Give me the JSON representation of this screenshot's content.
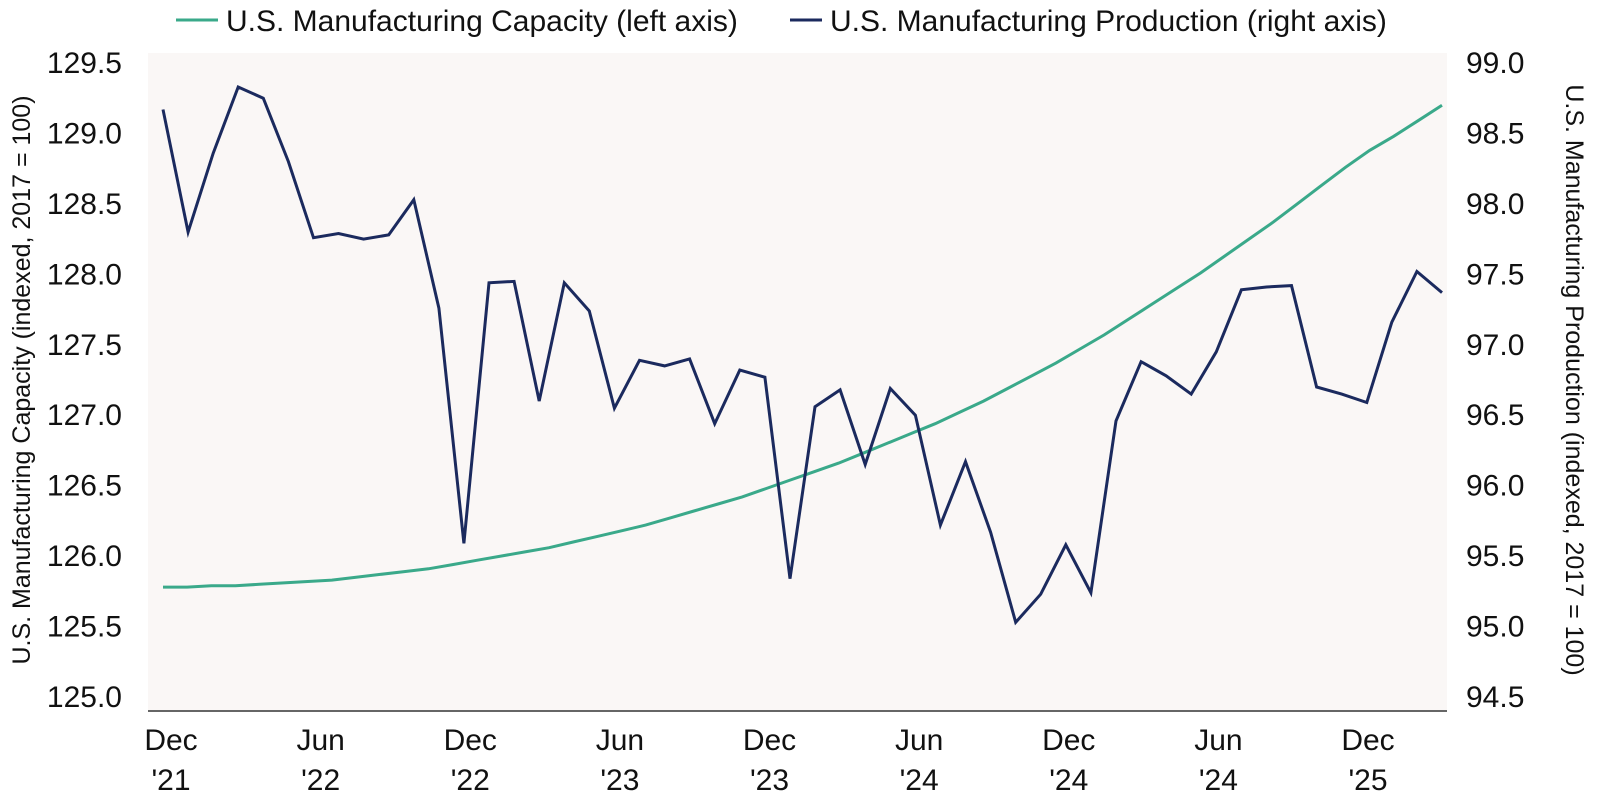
{
  "chart_data": {
    "type": "line",
    "title": "",
    "legend": {
      "placement": "top-center",
      "entries": [
        {
          "name": "U.S. Manufacturing Capacity (left axis)",
          "color": "#3aa98a"
        },
        {
          "name": "U.S. Manufacturing Production (right axis)",
          "color": "#1b2a5e"
        }
      ]
    },
    "background_color": "#faf7f6",
    "xlabel": "",
    "x_tick_labels": [
      {
        "line1": "Dec",
        "line2": "'21"
      },
      {
        "line1": "Jun",
        "line2": "'22"
      },
      {
        "line1": "Dec",
        "line2": "'22"
      },
      {
        "line1": "Jun",
        "line2": "'23"
      },
      {
        "line1": "Dec",
        "line2": "'23"
      },
      {
        "line1": "Jun",
        "line2": "'24"
      },
      {
        "line1": "Dec",
        "line2": "'24"
      },
      {
        "line1": "Jun",
        "line2": "'24"
      },
      {
        "line1": "Dec",
        "line2": "'25"
      }
    ],
    "y_left": {
      "label": "U.S. Manufacturing Capacity (indexed, 2017 = 100)",
      "ylim": [
        125.0,
        129.5
      ],
      "ticks": [
        "125.0",
        "125.5",
        "126.0",
        "126.5",
        "127.0",
        "127.5",
        "128.0",
        "128.5",
        "129.0",
        "129.5"
      ]
    },
    "y_right": {
      "label": "U.S. Manufacturing Production (indexed, 2017 = 100)",
      "ylim": [
        94.5,
        99.0
      ],
      "ticks": [
        "94.5",
        "95.0",
        "95.5",
        "96.0",
        "96.5",
        "97.0",
        "97.5",
        "98.0",
        "98.5",
        "99.0"
      ]
    },
    "grid": false,
    "series": [
      {
        "name": "U.S. Manufacturing Capacity (left axis)",
        "axis": "left",
        "color": "#3aa98a",
        "values": [
          125.78,
          125.78,
          125.79,
          125.79,
          125.8,
          125.81,
          125.82,
          125.83,
          125.85,
          125.87,
          125.89,
          125.91,
          125.94,
          125.97,
          126.0,
          126.03,
          126.06,
          126.1,
          126.14,
          126.18,
          126.22,
          126.27,
          126.32,
          126.37,
          126.42,
          126.48,
          126.54,
          126.6,
          126.66,
          126.73,
          126.8,
          126.87,
          126.94,
          127.02,
          127.1,
          127.19,
          127.28,
          127.37,
          127.47,
          127.57,
          127.68,
          127.79,
          127.9,
          128.01,
          128.13,
          128.25,
          128.37,
          128.5,
          128.63,
          128.76,
          128.88,
          128.98,
          129.09,
          129.2
        ]
      },
      {
        "name": "U.S. Manufacturing Production (right axis)",
        "axis": "right",
        "color": "#1b2a5e",
        "values": [
          98.67,
          97.8,
          98.36,
          98.83,
          98.75,
          98.3,
          97.76,
          97.79,
          97.75,
          97.78,
          98.03,
          97.26,
          95.59,
          97.44,
          97.45,
          96.6,
          97.44,
          97.24,
          96.55,
          96.89,
          96.85,
          96.9,
          96.44,
          96.82,
          96.77,
          95.34,
          96.56,
          96.68,
          96.15,
          96.69,
          96.5,
          95.72,
          96.17,
          95.67,
          95.03,
          95.23,
          95.58,
          95.24,
          96.46,
          96.88,
          96.78,
          96.65,
          96.95,
          97.39,
          97.41,
          97.42,
          96.7,
          96.65,
          96.59,
          97.16,
          97.52,
          97.37
        ]
      }
    ]
  }
}
